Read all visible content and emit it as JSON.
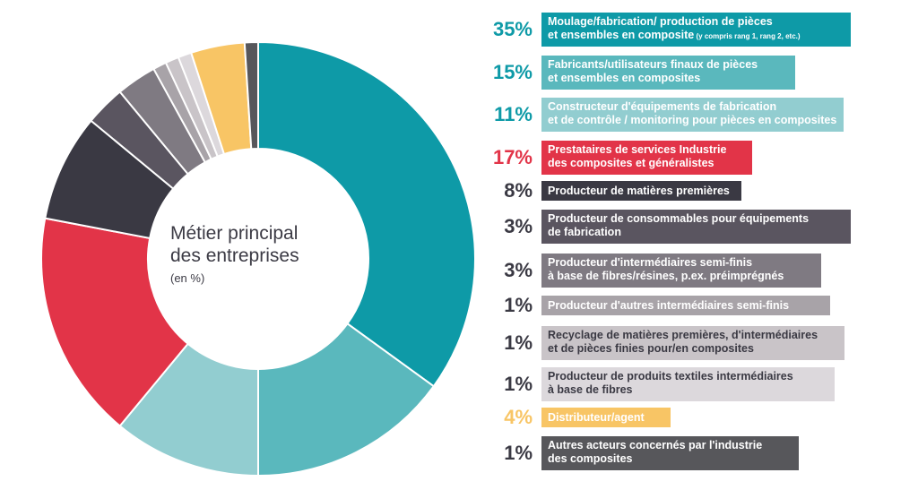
{
  "center": {
    "title_line1": "Métier principal",
    "title_line2": "des entreprises",
    "unit": "(en %)"
  },
  "chart_data": {
    "type": "pie",
    "title": "Métier principal des entreprises",
    "unit": "(en %)",
    "categories": [
      "Moulage/fabrication/ production de pièces et ensembles en composite (y compris rang 1, rang 2, etc.)",
      "Fabricants/utilisateurs finaux de pièces et ensembles en composites",
      "Constructeur d'équipements de fabrication et de contrôle / monitoring pour pièces en composites",
      "Prestataires de services Industrie des composites et généralistes",
      "Producteur de matières premières",
      "Producteur de consommables pour équipements de fabrication",
      "Producteur d'intermédiaires semi-finis à base de fibres/résines, p.ex. préimprégnés",
      "Producteur d'autres intermédiaires semi-finis",
      "Recyclage de matières premières, d'intermédiaires et de pièces finies pour/en composites",
      "Producteur de produits textiles intermédiaires à base de fibres",
      "Distributeur/agent",
      "Autres acteurs concernés par l'industrie des composites"
    ],
    "values": [
      35,
      15,
      11,
      17,
      8,
      3,
      3,
      1,
      1,
      1,
      4,
      1
    ],
    "colors": [
      "#0e9aa7",
      "#5ab8bd",
      "#92cdd0",
      "#e23448",
      "#3a3943",
      "#5a5560",
      "#7f7a82",
      "#a8a3a8",
      "#c9c4c8",
      "#dcd8dc",
      "#f8c565",
      "#57575b"
    ],
    "legend_position": "right"
  },
  "legend": [
    {
      "pct": "35%",
      "pct_color": "#0e9aa7",
      "bg": "#0e9aa7",
      "line1": "Moulage/fabrication/ production de pièces",
      "line2": "et ensembles en composite",
      "note": " (y compris rang 1, rang 2, etc.)"
    },
    {
      "pct": "15%",
      "pct_color": "#0e9aa7",
      "bg": "#5ab8bd",
      "line1": "Fabricants/utilisateurs finaux de pièces",
      "line2": "et ensembles en composites",
      "note": ""
    },
    {
      "pct": "11%",
      "pct_color": "#0e9aa7",
      "bg": "#92cdd0",
      "line1": "Constructeur d'équipements de fabrication",
      "line2": "et de contrôle / monitoring pour pièces en composites",
      "note": ""
    },
    {
      "pct": "17%",
      "pct_color": "#e23448",
      "bg": "#e23448",
      "line1": "Prestataires de services Industrie",
      "line2": "des composites et généralistes",
      "note": ""
    },
    {
      "pct": "8%",
      "pct_color": "#3a3943",
      "bg": "#3a3943",
      "line1": "Producteur de matières premières",
      "line2": "",
      "note": ""
    },
    {
      "pct": "3%",
      "pct_color": "#3a3943",
      "bg": "#5a5560",
      "line1": "Producteur de consommables pour équipements",
      "line2": "de fabrication",
      "note": ""
    },
    {
      "pct": "3%",
      "pct_color": "#3a3943",
      "bg": "#7f7a82",
      "line1": "Producteur d'intermédiaires semi-finis",
      "line2": "à base de fibres/résines, p.ex. préimprégnés",
      "note": ""
    },
    {
      "pct": "1%",
      "pct_color": "#3a3943",
      "bg": "#a8a3a8",
      "line1": "Producteur d'autres intermédiaires semi-finis",
      "line2": "",
      "note": ""
    },
    {
      "pct": "1%",
      "pct_color": "#3a3943",
      "bg": "#c9c4c8",
      "text_color": "#3a3943",
      "line1": "Recyclage de matières premières, d'intermédiaires",
      "line2": "et de pièces finies pour/en composites",
      "note": ""
    },
    {
      "pct": "1%",
      "pct_color": "#3a3943",
      "bg": "#dcd8dc",
      "text_color": "#3a3943",
      "line1": "Producteur de produits textiles intermédiaires",
      "line2": "à base de fibres",
      "note": ""
    },
    {
      "pct": "4%",
      "pct_color": "#f8c565",
      "bg": "#f8c565",
      "line1": "Distributeur/agent",
      "line2": "",
      "note": ""
    },
    {
      "pct": "1%",
      "pct_color": "#3a3943",
      "bg": "#57575b",
      "line1": "Autres acteurs concernés par l'industrie",
      "line2": "des composites",
      "note": ""
    }
  ]
}
